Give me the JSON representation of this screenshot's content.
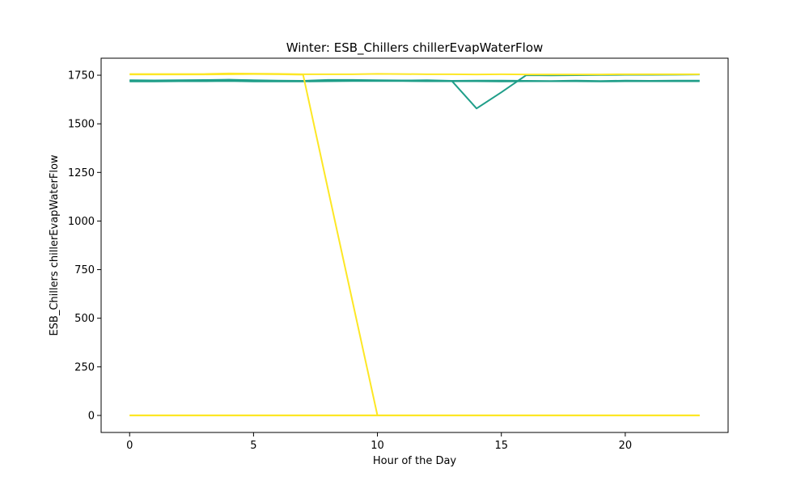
{
  "chart_data": {
    "type": "line",
    "title": "Winter: ESB_Chillers chillerEvapWaterFlow",
    "xlabel": "Hour of the Day",
    "ylabel": "ESB_Chillers chillerEvapWaterFlow",
    "xlim": [
      -1.15,
      24.15
    ],
    "ylim": [
      -87.5,
      1837.5
    ],
    "xticks": [
      0,
      5,
      10,
      15,
      20
    ],
    "yticks": [
      0,
      250,
      500,
      750,
      1000,
      1250,
      1500,
      1750
    ],
    "grid": false,
    "legend": "none",
    "series": [
      {
        "color": "#1f9e89",
        "x": [
          0,
          1,
          2,
          3,
          4,
          5,
          6,
          7,
          8,
          9,
          10,
          11,
          12,
          13,
          14,
          15,
          16,
          17,
          18,
          19,
          20,
          21,
          22,
          23
        ],
        "y": [
          1722,
          1720,
          1721,
          1722,
          1726,
          1723,
          1720,
          1720,
          1722,
          1723,
          1722,
          1722,
          1721,
          1721,
          1722,
          1722,
          1721,
          1720,
          1722,
          1720,
          1722,
          1721,
          1722,
          1722
        ]
      },
      {
        "color": "#1f9e89",
        "x": [
          0,
          1,
          2,
          3,
          4,
          5,
          6,
          7,
          8,
          9,
          10,
          11,
          12,
          13,
          14,
          15,
          16,
          17,
          18,
          19,
          20,
          21,
          22,
          23
        ],
        "y": [
          1718,
          1718,
          1719,
          1719,
          1720,
          1718,
          1718,
          1718,
          1719,
          1720,
          1720,
          1720,
          1719,
          1719,
          1719,
          1718,
          1719,
          1719,
          1719,
          1718,
          1719,
          1719,
          1719,
          1719
        ]
      },
      {
        "color": "#1f9e89",
        "x": [
          0,
          1,
          2,
          3,
          4,
          5,
          6,
          7,
          8,
          9,
          10,
          11,
          12,
          13,
          14,
          15,
          16,
          17,
          18,
          19,
          20,
          21,
          22,
          23
        ],
        "y": [
          1724,
          1723,
          1724,
          1725,
          1727,
          1724,
          1722,
          1721,
          1726,
          1726,
          1724,
          1723,
          1724,
          1721,
          1579,
          1662,
          1750,
          1749,
          1750,
          1751,
          1752,
          1752,
          1753,
          1754
        ]
      },
      {
        "color": "#fde725",
        "x": [
          0,
          1,
          2,
          3,
          4,
          5,
          6,
          7,
          8,
          9,
          10,
          11,
          12,
          13,
          14,
          15,
          16,
          17,
          18,
          19,
          20,
          21,
          22,
          23
        ],
        "y": [
          1754,
          1754,
          1754,
          1754,
          1755,
          1756,
          1755,
          1753,
          1166,
          583,
          0,
          0,
          0,
          0,
          0,
          0,
          0,
          0,
          0,
          0,
          0,
          0,
          0,
          0
        ]
      },
      {
        "color": "#fde725",
        "x": [
          0,
          1,
          2,
          3,
          4,
          5,
          6,
          7,
          8,
          9,
          10,
          11,
          12,
          13,
          14,
          15,
          16,
          17,
          18,
          19,
          20,
          21,
          22,
          23
        ],
        "y": [
          1756,
          1756,
          1756,
          1756,
          1759,
          1758,
          1757,
          1755,
          1755,
          1755,
          1757,
          1756,
          1755,
          1755,
          1754,
          1755,
          1754,
          1754,
          1754,
          1754,
          1755,
          1755,
          1755,
          1755
        ]
      },
      {
        "color": "#fde725",
        "x": [
          0,
          1,
          2,
          3,
          4,
          5,
          6,
          7,
          8,
          9,
          10,
          11,
          12,
          13,
          14,
          15,
          16,
          17,
          18,
          19,
          20,
          21,
          22,
          23
        ],
        "y": [
          0,
          0,
          0,
          0,
          0,
          0,
          0,
          0,
          0,
          0,
          0,
          0,
          0,
          0,
          0,
          0,
          0,
          0,
          0,
          0,
          0,
          0,
          0,
          0
        ]
      },
      {
        "color": "#fde725",
        "x": [
          0,
          1,
          2,
          3,
          4,
          5,
          6,
          7,
          8,
          9,
          10,
          11,
          12,
          13,
          14,
          15,
          16,
          17,
          18,
          19,
          20,
          21,
          22,
          23
        ],
        "y": [
          1,
          1,
          1,
          1,
          1,
          1,
          1,
          1,
          1,
          1,
          1,
          1,
          1,
          1,
          1,
          1,
          1,
          1,
          1,
          1,
          1,
          1,
          1,
          1
        ]
      }
    ]
  }
}
